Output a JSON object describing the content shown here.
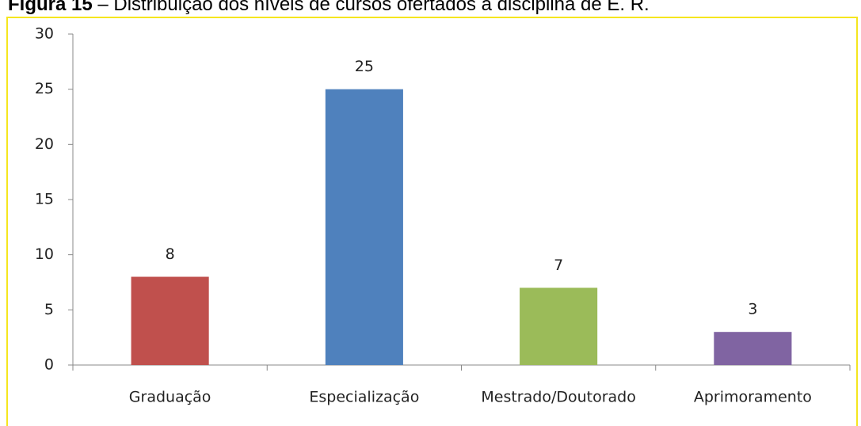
{
  "chart_data": {
    "type": "bar",
    "title_label": "Figura 15",
    "title": "– Distribuição dos níveis de cursos ofertados à disciplina de E. R.",
    "categories": [
      "Graduação",
      "Especialização",
      "Mestrado/Doutorado",
      "Aprimoramento"
    ],
    "values": [
      8,
      25,
      7,
      3
    ],
    "colors": [
      "#c0504d",
      "#4f81bd",
      "#9bbb59",
      "#8064a2"
    ],
    "ylim": [
      0,
      30
    ],
    "yticks": [
      0,
      5,
      10,
      15,
      20,
      25,
      30
    ],
    "grid": false
  }
}
